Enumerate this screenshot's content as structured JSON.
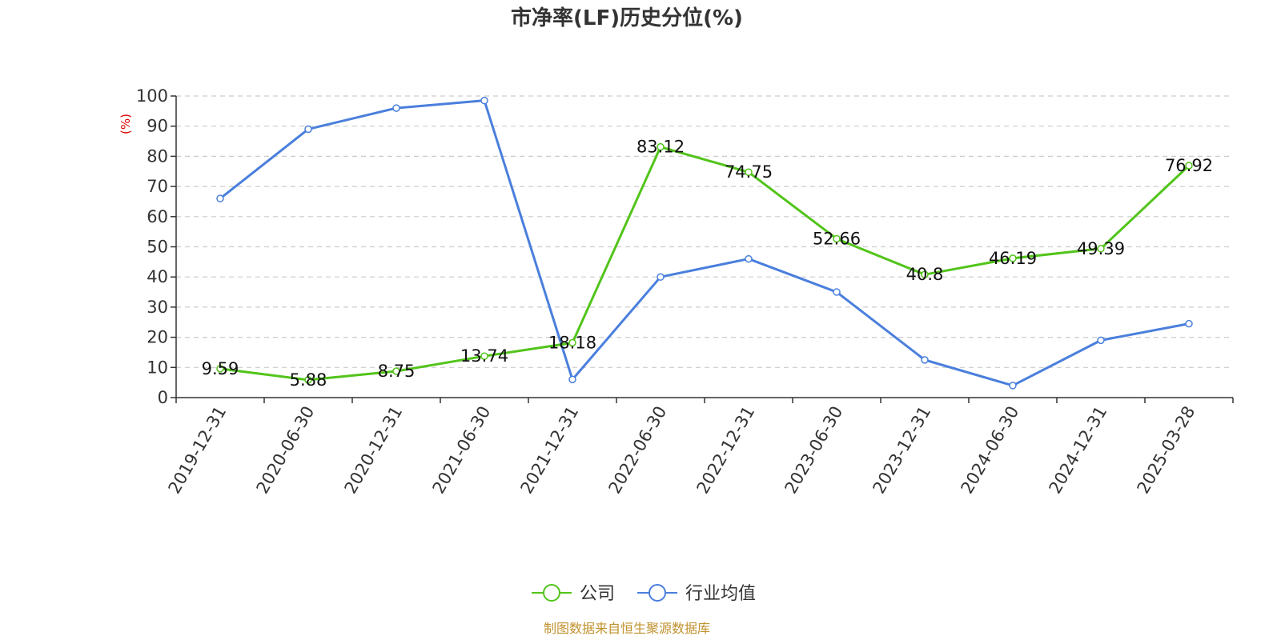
{
  "chart_data": {
    "type": "line",
    "title": "市净率(LF)历史分位(%)",
    "yunit": "(%)",
    "ylim": [
      0,
      100
    ],
    "yticks": [
      "0",
      "10",
      "20",
      "30",
      "40",
      "50",
      "60",
      "70",
      "80",
      "90",
      "100"
    ],
    "grid": true,
    "legend_position": "bottom-center",
    "categories": [
      "2019-12-31",
      "2020-06-30",
      "2020-12-31",
      "2021-06-30",
      "2021-12-31",
      "2022-06-30",
      "2022-12-31",
      "2023-06-30",
      "2023-12-31",
      "2024-06-30",
      "2024-12-31",
      "2025-03-28"
    ],
    "series": [
      {
        "name": "公司",
        "color": "#52c41a",
        "values": [
          9.59,
          5.88,
          8.75,
          13.74,
          18.18,
          83.12,
          74.75,
          52.66,
          40.8,
          46.19,
          49.39,
          76.92
        ],
        "labels": [
          "9.59",
          "5.88",
          "8.75",
          "13.74",
          "18.18",
          "83.12",
          "74.75",
          "52.66",
          "40.8",
          "46.19",
          "49.39",
          "76.92"
        ]
      },
      {
        "name": "行业均值",
        "color": "#4a7fdc",
        "values": [
          66,
          89,
          96,
          98.5,
          6,
          40,
          46,
          35,
          12.5,
          4,
          19,
          24.5
        ]
      }
    ],
    "source": "制图数据来自恒生聚源数据库"
  }
}
